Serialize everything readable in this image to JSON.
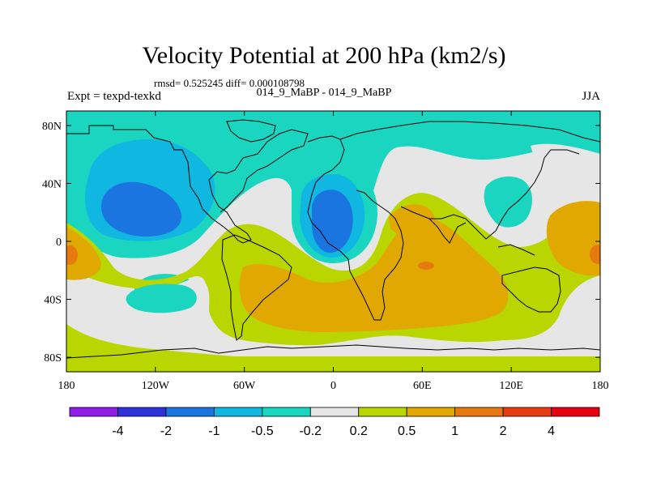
{
  "chart_data": {
    "type": "heatmap",
    "title": "Velocity Potential at 200 hPa (km2/s)",
    "stats_text": "rmsd= 0.525245 diff= 0.000108798",
    "left_label": "Expt = texpd-texkd",
    "center_label": "014_9_MaBP - 014_9_MaBP",
    "right_label": "JJA",
    "x_range": [
      -180,
      180
    ],
    "y_range": [
      -90,
      90
    ],
    "x_ticks": [
      {
        "value": -180,
        "label": "180"
      },
      {
        "value": -120,
        "label": "120W"
      },
      {
        "value": -60,
        "label": "60W"
      },
      {
        "value": 0,
        "label": "0"
      },
      {
        "value": 60,
        "label": "60E"
      },
      {
        "value": 120,
        "label": "120E"
      },
      {
        "value": 180,
        "label": "180"
      }
    ],
    "y_ticks": [
      {
        "value": 80,
        "label": "80N"
      },
      {
        "value": 40,
        "label": "40N"
      },
      {
        "value": 0,
        "label": "0"
      },
      {
        "value": -40,
        "label": "40S"
      },
      {
        "value": -80,
        "label": "80S"
      }
    ],
    "levels": [
      -4,
      -2,
      -1,
      -0.5,
      -0.2,
      0.2,
      0.5,
      1,
      2,
      4
    ],
    "level_labels": [
      "-4",
      "-2",
      "-1",
      "-0.5",
      "-0.2",
      "0.2",
      "0.5",
      "1",
      "2",
      "4"
    ],
    "colors": [
      "#8f1fe6",
      "#2d31d9",
      "#1a75e0",
      "#10b7e0",
      "#1ad6c0",
      "#e6e6e6",
      "#b9d600",
      "#e0a800",
      "#e67a10",
      "#e63c10",
      "#e60010"
    ],
    "regions": [
      {
        "name": "north-band",
        "level": "-0.5..-0.2",
        "lon_range": [
          -180,
          180
        ],
        "lat_range": [
          40,
          90
        ]
      },
      {
        "name": "pacific-low",
        "level": "-2..-1",
        "center": [
          -140,
          20
        ],
        "value": -1.3
      },
      {
        "name": "atlantic-africa-low",
        "level": "-2..-1",
        "center": [
          -5,
          10
        ],
        "value": -1.2
      },
      {
        "name": "south-atlantic-neutral",
        "level": "-0.2..0.2",
        "center": [
          -25,
          -45
        ]
      },
      {
        "name": "central-pacific-neutral",
        "level": "-0.2..0.2",
        "center": [
          -160,
          -50
        ]
      },
      {
        "name": "africa-indian-high",
        "level": "0.5..1",
        "center": [
          55,
          -25
        ],
        "value": 0.8
      },
      {
        "name": "indian-ocean-max",
        "level": "1..2",
        "center": [
          62,
          -17
        ],
        "value": 1.2
      },
      {
        "name": "west-pacific-high",
        "level": "0.5..1",
        "center": [
          160,
          -5
        ],
        "value": 0.7
      },
      {
        "name": "east-pacific-max",
        "level": "1..2",
        "center": [
          -178,
          -10
        ],
        "value": 1.1
      }
    ]
  }
}
